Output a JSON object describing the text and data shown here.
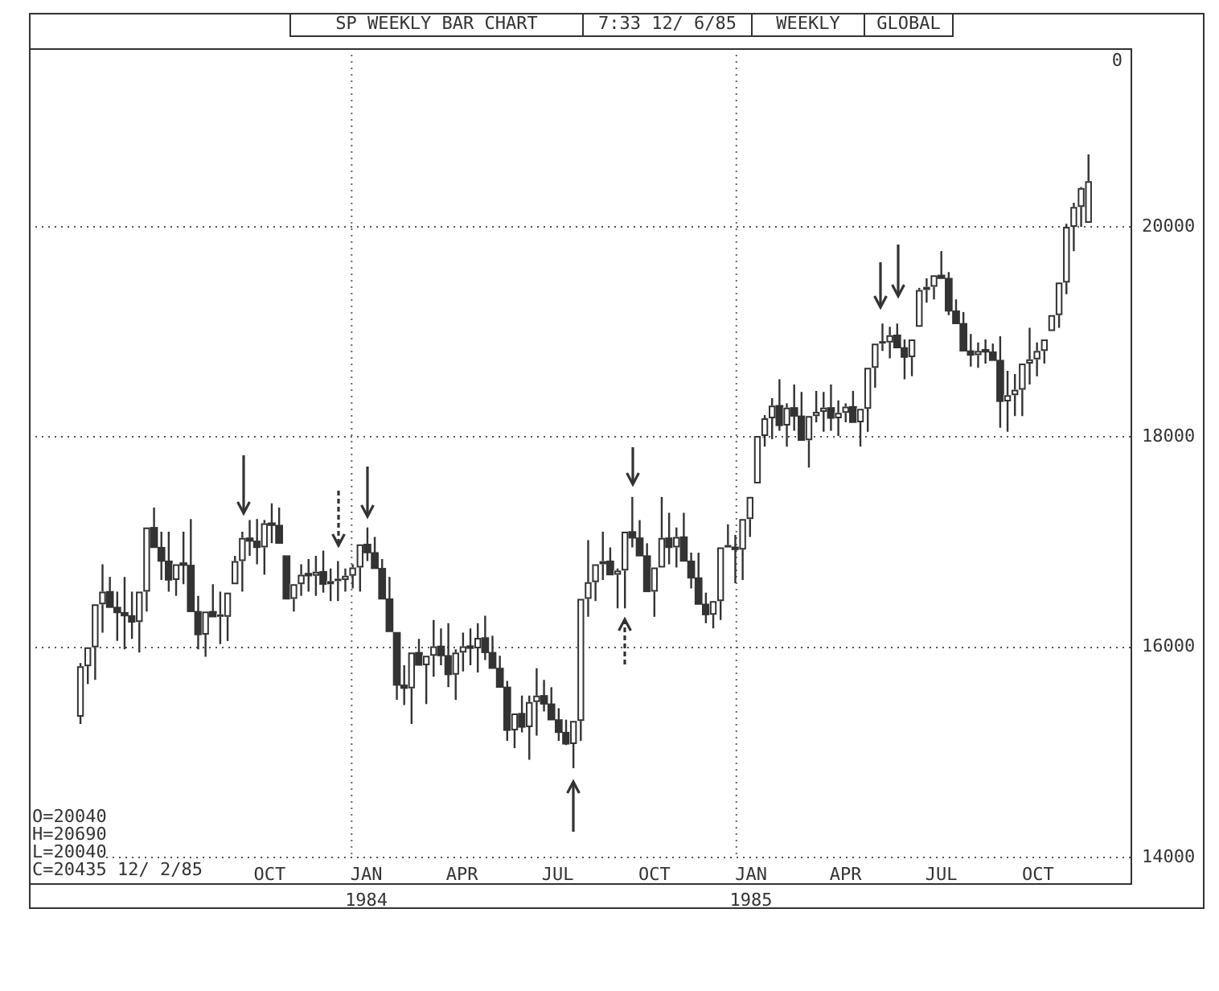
{
  "chart_data": {
    "type": "candlestick",
    "title": "SP WEEKLY BAR CHART",
    "subtitle": "7:33 12/ 6/85",
    "annotations": [
      "WEEKLY",
      "GLOBAL",
      "0",
      "O=20040",
      "H=20690",
      "L=20040",
      "C=20435 12/ 2/85"
    ],
    "color": "#333333",
    "colors": [
      "#ffffff",
      "#ffffff",
      "#ffffff",
      "#ffffff",
      "#333333",
      "#333333",
      "#333333",
      "#333333",
      "#ffffff",
      "#ffffff",
      "#333333",
      "#333333",
      "#333333",
      "#ffffff",
      "#333333",
      "#333333",
      "#333333",
      "#ffffff",
      "#333333",
      "#ffffff",
      "#ffffff",
      "#ffffff",
      "#ffffff",
      "#333333",
      "#333333",
      "#ffffff",
      "#333333",
      "#333333",
      "#333333",
      "#ffffff",
      "#ffffff",
      "#333333",
      "#ffffff",
      "#333333",
      "#ffffff",
      "#ffffff",
      "#ffffff",
      "#ffffff",
      "#ffffff",
      "#333333",
      "#333333",
      "#333333",
      "#333333",
      "#333333",
      "#333333",
      "#ffffff",
      "#333333",
      "#ffffff",
      "#ffffff",
      "#333333",
      "#333333",
      "#ffffff",
      "#ffffff",
      "#333333",
      "#ffffff",
      "#333333",
      "#333333",
      "#333333",
      "#333333",
      "#ffffff",
      "#333333",
      "#ffffff",
      "#ffffff",
      "#333333",
      "#333333",
      "#333333",
      "#333333",
      "#ffffff",
      "#ffffff",
      "#ffffff",
      "#ffffff",
      "#ffffff",
      "#333333",
      "#ffffff",
      "#ffffff",
      "#333333",
      "#333333",
      "#333333",
      "#ffffff",
      "#ffffff",
      "#333333",
      "#ffffff",
      "#333333",
      "#333333",
      "#333333",
      "#333333",
      "#ffffff",
      "#ffffff",
      "#ffffff",
      "#333333",
      "#ffffff",
      "#ffffff",
      "#ffffff",
      "#ffffff",
      "#ffffff",
      "#333333",
      "#ffffff",
      "#333333",
      "#333333",
      "#ffffff",
      "#ffffff",
      "#ffffff",
      "#333333",
      "#ffffff",
      "#ffffff",
      "#333333",
      "#ffffff",
      "#ffffff",
      "#ffffff",
      "#ffffff",
      "#ffffff",
      "#333333",
      "#333333",
      "#ffffff",
      "#ffffff",
      "#ffffff",
      "#ffffff",
      "#333333",
      "#333333",
      "#333333",
      "#333333",
      "#333333",
      "#ffffff",
      "#333333",
      "#333333",
      "#333333",
      "#ffffff",
      "#ffffff",
      "#ffffff",
      "#ffffff",
      "#ffffff",
      "#ffffff",
      "#ffffff",
      "#ffffff",
      "#ffffff",
      "#ffffff",
      "#ffffff",
      "#ffffff"
    ],
    "x": [
      "1983-04-18",
      "1983-04-25",
      "1983-05-02",
      "1983-05-09",
      "1983-05-16",
      "1983-05-23",
      "1983-05-30",
      "1983-06-06",
      "1983-06-13",
      "1983-06-20",
      "1983-06-27",
      "1983-07-04",
      "1983-07-11",
      "1983-07-18",
      "1983-07-25",
      "1983-08-01",
      "1983-08-08",
      "1983-08-15",
      "1983-08-22",
      "1983-08-29",
      "1983-09-05",
      "1983-09-12",
      "1983-09-19",
      "1983-09-26",
      "1983-10-03",
      "1983-10-10",
      "1983-10-17",
      "1983-10-24",
      "1983-10-31",
      "1983-11-07",
      "1983-11-14",
      "1983-11-21",
      "1983-11-28",
      "1983-12-05",
      "1983-12-12",
      "1983-12-19",
      "1983-12-26",
      "1984-01-02",
      "1984-01-09",
      "1984-01-16",
      "1984-01-23",
      "1984-01-30",
      "1984-02-06",
      "1984-02-13",
      "1984-02-20",
      "1984-02-27",
      "1984-03-05",
      "1984-03-12",
      "1984-03-19",
      "1984-03-26",
      "1984-04-02",
      "1984-04-09",
      "1984-04-16",
      "1984-04-23",
      "1984-04-30",
      "1984-05-07",
      "1984-05-14",
      "1984-05-21",
      "1984-05-28",
      "1984-06-04",
      "1984-06-11",
      "1984-06-18",
      "1984-06-25",
      "1984-07-02",
      "1984-07-09",
      "1984-07-16",
      "1984-07-23",
      "1984-07-30",
      "1984-08-06",
      "1984-08-13",
      "1984-08-20",
      "1984-08-27",
      "1984-09-03",
      "1984-09-10",
      "1984-09-17",
      "1984-09-24",
      "1984-10-01",
      "1984-10-08",
      "1984-10-15",
      "1984-10-22",
      "1984-10-29",
      "1984-11-05",
      "1984-11-12",
      "1984-11-19",
      "1984-11-26",
      "1984-12-03",
      "1984-12-10",
      "1984-12-17",
      "1984-12-24",
      "1984-12-31",
      "1985-01-07",
      "1985-01-14",
      "1985-01-21",
      "1985-01-28",
      "1985-02-04",
      "1985-02-11",
      "1985-02-18",
      "1985-02-25",
      "1985-03-04",
      "1985-03-11",
      "1985-03-18",
      "1985-03-25",
      "1985-04-01",
      "1985-04-08",
      "1985-04-15",
      "1985-04-22",
      "1985-04-29",
      "1985-05-06",
      "1985-05-13",
      "1985-05-20",
      "1985-05-27",
      "1985-06-03",
      "1985-06-10",
      "1985-06-17",
      "1985-06-24",
      "1985-07-01",
      "1985-07-08",
      "1985-07-15",
      "1985-07-22",
      "1985-07-29",
      "1985-08-05",
      "1985-08-12",
      "1985-08-19",
      "1985-08-26",
      "1985-09-02",
      "1985-09-09",
      "1985-09-16",
      "1985-09-23",
      "1985-09-30",
      "1985-10-07",
      "1985-10-14",
      "1985-10-21",
      "1985-10-28",
      "1985-11-04",
      "1985-11-11",
      "1985-11-18",
      "1985-11-25",
      "1985-12-02"
    ],
    "ohlc": [
      [
        15340,
        15850,
        15270,
        15820
      ],
      [
        15820,
        16000,
        15650,
        16000
      ],
      [
        16000,
        16410,
        15690,
        16410
      ],
      [
        16410,
        16790,
        16140,
        16530
      ],
      [
        16530,
        16670,
        16380,
        16380
      ],
      [
        16380,
        16530,
        16060,
        16330
      ],
      [
        16330,
        16670,
        15980,
        16300
      ],
      [
        16300,
        16530,
        16080,
        16240
      ],
      [
        16240,
        16530,
        15950,
        16530
      ],
      [
        16530,
        17140,
        16340,
        17140
      ],
      [
        17140,
        17330,
        16950,
        16950
      ],
      [
        16950,
        17100,
        16640,
        16820
      ],
      [
        16820,
        17100,
        16530,
        16640
      ],
      [
        16640,
        16790,
        16490,
        16790
      ],
      [
        16790,
        17100,
        16600,
        16780
      ],
      [
        16780,
        17220,
        16340,
        16340
      ],
      [
        16340,
        16490,
        15980,
        16120
      ],
      [
        16120,
        16340,
        15910,
        16340
      ],
      [
        16340,
        16600,
        16290,
        16290
      ],
      [
        16290,
        16530,
        16030,
        16290
      ],
      [
        16290,
        16520,
        16060,
        16520
      ],
      [
        16600,
        16870,
        16600,
        16820
      ],
      [
        16820,
        17100,
        16530,
        17040
      ],
      [
        17040,
        17210,
        16870,
        17010
      ],
      [
        17010,
        17220,
        16790,
        16950
      ],
      [
        16950,
        17210,
        16690,
        17180
      ],
      [
        17180,
        17370,
        16990,
        17160
      ],
      [
        17160,
        17330,
        16990,
        16990
      ],
      [
        16870,
        16870,
        16460,
        16460
      ],
      [
        16460,
        16600,
        16340,
        16600
      ],
      [
        16600,
        16790,
        16490,
        16690
      ],
      [
        16690,
        16840,
        16530,
        16680
      ],
      [
        16680,
        16870,
        16490,
        16720
      ],
      [
        16720,
        16920,
        16520,
        16600
      ],
      [
        16600,
        16750,
        16440,
        16630
      ],
      [
        16630,
        16820,
        16440,
        16640
      ],
      [
        16640,
        16750,
        16530,
        16680
      ],
      [
        16680,
        16790,
        16560,
        16760
      ],
      [
        16760,
        16980,
        16530,
        16980
      ],
      [
        16980,
        17140,
        16820,
        16900
      ],
      [
        16900,
        17050,
        16750,
        16750
      ],
      [
        16750,
        16840,
        16460,
        16460
      ],
      [
        16460,
        16670,
        16150,
        16150
      ],
      [
        16140,
        16140,
        15500,
        15640
      ],
      [
        15640,
        15830,
        15450,
        15610
      ],
      [
        15610,
        15950,
        15270,
        15950
      ],
      [
        15950,
        16080,
        15830,
        15830
      ],
      [
        15830,
        15920,
        15460,
        15920
      ],
      [
        15920,
        16260,
        15720,
        16010
      ],
      [
        16010,
        16180,
        15830,
        15920
      ],
      [
        15920,
        16230,
        15620,
        15740
      ],
      [
        15740,
        15980,
        15500,
        15950
      ],
      [
        15950,
        16140,
        15770,
        16010
      ],
      [
        16010,
        16180,
        15830,
        15990
      ],
      [
        15990,
        16230,
        15760,
        16090
      ],
      [
        16090,
        16300,
        15880,
        15950
      ],
      [
        15950,
        16110,
        15800,
        15800
      ],
      [
        15800,
        15920,
        15620,
        15620
      ],
      [
        15620,
        15680,
        15110,
        15210
      ],
      [
        15210,
        15370,
        15040,
        15370
      ],
      [
        15370,
        15540,
        15190,
        15240
      ],
      [
        15240,
        15540,
        14930,
        15480
      ],
      [
        15480,
        15800,
        15160,
        15540
      ],
      [
        15540,
        15690,
        15390,
        15460
      ],
      [
        15460,
        15620,
        15310,
        15310
      ],
      [
        15310,
        15420,
        15110,
        15190
      ],
      [
        15190,
        15310,
        15070,
        15080
      ],
      [
        15080,
        15300,
        14850,
        15300
      ],
      [
        15300,
        16460,
        15110,
        16460
      ],
      [
        16460,
        17020,
        16290,
        16620
      ],
      [
        16620,
        16790,
        16440,
        16790
      ],
      [
        16790,
        17100,
        16640,
        16820
      ],
      [
        16820,
        16950,
        16690,
        16690
      ],
      [
        16690,
        16750,
        16370,
        16730
      ],
      [
        16730,
        17100,
        16370,
        17100
      ],
      [
        17100,
        17430,
        16950,
        17040
      ],
      [
        17040,
        17210,
        16870,
        16870
      ],
      [
        16870,
        16990,
        16530,
        16530
      ],
      [
        16530,
        16760,
        16290,
        16760
      ],
      [
        16760,
        17430,
        16760,
        17040
      ],
      [
        17040,
        17280,
        16790,
        16950
      ],
      [
        16950,
        17140,
        16760,
        17050
      ],
      [
        17050,
        17280,
        16820,
        16820
      ],
      [
        16820,
        16900,
        16560,
        16660
      ],
      [
        16660,
        16900,
        16410,
        16410
      ],
      [
        16410,
        16520,
        16230,
        16310
      ],
      [
        16310,
        16440,
        16180,
        16440
      ],
      [
        16440,
        16950,
        16260,
        16950
      ],
      [
        16950,
        17170,
        16950,
        16950
      ],
      [
        16950,
        17070,
        16610,
        16930
      ],
      [
        16930,
        17220,
        16640,
        17220
      ],
      [
        17220,
        17430,
        17050,
        17430
      ],
      [
        17560,
        18010,
        17560,
        18010
      ],
      [
        18010,
        18210,
        17910,
        18180
      ],
      [
        18180,
        18370,
        17980,
        18300
      ],
      [
        18300,
        18550,
        18060,
        18110
      ],
      [
        18110,
        18320,
        17910,
        18280
      ],
      [
        18280,
        18500,
        18060,
        18200
      ],
      [
        18200,
        18430,
        17970,
        17970
      ],
      [
        17970,
        18200,
        17710,
        18200
      ],
      [
        18200,
        18440,
        18140,
        18240
      ],
      [
        18240,
        18430,
        18050,
        18280
      ],
      [
        18280,
        18500,
        18060,
        18180
      ],
      [
        18180,
        18350,
        18010,
        18230
      ],
      [
        18230,
        18320,
        18140,
        18290
      ],
      [
        18290,
        18440,
        18140,
        18140
      ],
      [
        18140,
        18270,
        17910,
        18270
      ],
      [
        18270,
        18660,
        18050,
        18660
      ],
      [
        18660,
        18890,
        18470,
        18890
      ],
      [
        18890,
        19080,
        18820,
        18900
      ],
      [
        18900,
        19050,
        18750,
        18970
      ],
      [
        18970,
        19080,
        18850,
        18850
      ],
      [
        18850,
        18930,
        18550,
        18760
      ],
      [
        18760,
        18930,
        18580,
        18930
      ],
      [
        19050,
        19420,
        19050,
        19400
      ],
      [
        19400,
        19510,
        19280,
        19430
      ],
      [
        19430,
        19540,
        19310,
        19540
      ],
      [
        19540,
        19770,
        19510,
        19510
      ],
      [
        19510,
        19570,
        19160,
        19200
      ],
      [
        19200,
        19310,
        19080,
        19080
      ],
      [
        19080,
        19190,
        18820,
        18820
      ],
      [
        18820,
        18980,
        18670,
        18780
      ],
      [
        18780,
        18900,
        18660,
        18820
      ],
      [
        18820,
        18930,
        18700,
        18810
      ],
      [
        18810,
        18890,
        18730,
        18730
      ],
      [
        18730,
        18960,
        18090,
        18340
      ],
      [
        18340,
        18630,
        18050,
        18400
      ],
      [
        18400,
        18600,
        18200,
        18450
      ],
      [
        18450,
        18700,
        18200,
        18700
      ],
      [
        18700,
        19040,
        18500,
        18740
      ],
      [
        18740,
        18900,
        18580,
        18820
      ],
      [
        18820,
        18930,
        18700,
        18930
      ],
      [
        19010,
        19160,
        19010,
        19160
      ],
      [
        19160,
        19470,
        19040,
        19470
      ],
      [
        19470,
        20030,
        19360,
        20000
      ],
      [
        20000,
        20230,
        19770,
        20190
      ],
      [
        20190,
        20380,
        20000,
        20370
      ],
      [
        20040,
        20690,
        20040,
        20435
      ]
    ],
    "xlim": [
      "1983-02-28",
      "1986-01-11"
    ],
    "xticks": [
      {
        "value": "1983-10-15",
        "label": "OCT"
      },
      {
        "value": "1984-01-15",
        "label": "JAN\n1984"
      },
      {
        "value": "1984-04-15",
        "label": "APR"
      },
      {
        "value": "1984-07-15",
        "label": "JUL"
      },
      {
        "value": "1984-10-15",
        "label": "OCT"
      },
      {
        "value": "1985-01-15",
        "label": "JAN\n1985"
      },
      {
        "value": "1985-04-15",
        "label": "APR"
      },
      {
        "value": "1985-07-15",
        "label": "JUL"
      },
      {
        "value": "1985-10-15",
        "label": "OCT"
      }
    ],
    "ylim": [
      14000,
      21700
    ],
    "yticks": [
      14000,
      16000,
      18000,
      20000
    ],
    "grid": "y",
    "ref_lines": [
      {
        "axis": "x",
        "value": "1984-01-01",
        "line_style": "dotted"
      },
      {
        "axis": "x",
        "value": "1985-01-01",
        "line_style": "dotted"
      }
    ]
  }
}
